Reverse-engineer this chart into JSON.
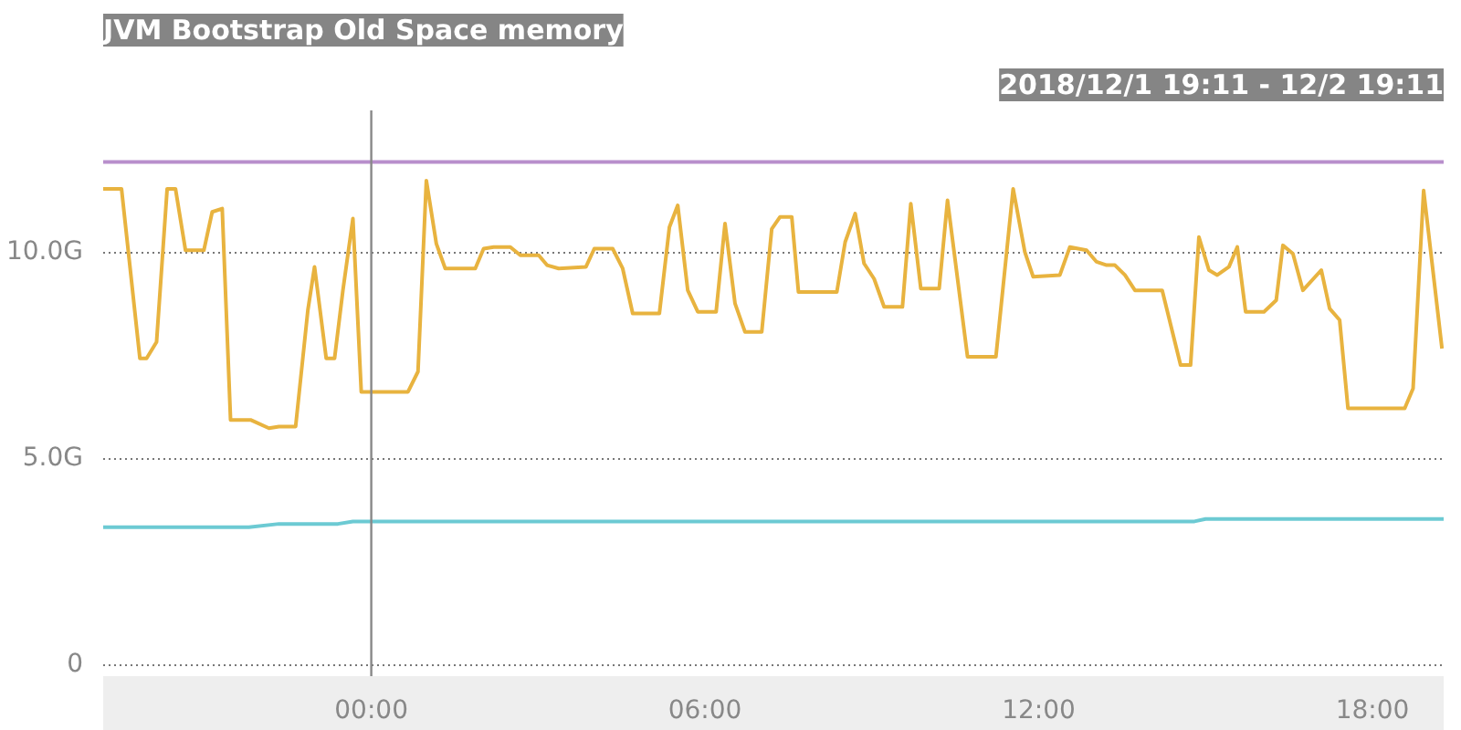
{
  "chart_data": {
    "type": "line",
    "title": "JVM Bootstrap Old Space memory",
    "subtitle": "2018/12/1 19:11 - 12/2 19:11",
    "xlim": [
      -4.82,
      19.28
    ],
    "xticks": [
      {
        "value": 0,
        "label": "00:00"
      },
      {
        "value": 6,
        "label": "06:00"
      },
      {
        "value": 12,
        "label": "12:00"
      },
      {
        "value": 18,
        "label": "18:00"
      }
    ],
    "ylim": [
      -0.28,
      13.43
    ],
    "yticks": [
      {
        "value": 0,
        "label": "0"
      },
      {
        "value": 5,
        "label": "5.0G"
      },
      {
        "value": 10,
        "label": "10.0G"
      }
    ],
    "grid": "y",
    "marker": "none",
    "line_style": "solid",
    "ref_lines": [
      {
        "axis": "x",
        "value": 0,
        "label": null,
        "color": "#888888"
      }
    ],
    "series": [
      {
        "color": "#b88fcc",
        "x": [
          -4.82,
          19.28
        ],
        "values": [
          12.18,
          12.18
        ]
      },
      {
        "color": "#6ccad3",
        "x": [
          -4.82,
          -2.2,
          -1.66,
          -0.6,
          -0.33,
          14.8,
          15.0,
          19.28
        ],
        "values": [
          3.33,
          3.33,
          3.41,
          3.41,
          3.47,
          3.47,
          3.53,
          3.53
        ]
      },
      {
        "color": "#e8b33f",
        "x": [
          -4.82,
          -4.49,
          -4.16,
          -4.04,
          -3.86,
          -3.67,
          -3.52,
          -3.34,
          -3.01,
          -2.86,
          -2.68,
          -2.53,
          -2.17,
          -1.84,
          -1.66,
          -1.36,
          -1.14,
          -1.02,
          -0.81,
          -0.66,
          -0.51,
          -0.33,
          -0.18,
          0.66,
          0.84,
          0.99,
          1.17,
          1.33,
          1.87,
          2.02,
          2.2,
          2.5,
          2.68,
          3.01,
          3.16,
          3.37,
          3.86,
          4.01,
          4.34,
          4.52,
          4.7,
          5.18,
          5.36,
          5.51,
          5.69,
          5.87,
          6.2,
          6.36,
          6.54,
          6.72,
          7.02,
          7.2,
          7.35,
          7.56,
          7.68,
          8.37,
          8.52,
          8.7,
          8.86,
          9.04,
          9.22,
          9.55,
          9.7,
          9.88,
          10.21,
          10.36,
          10.72,
          11.23,
          11.54,
          11.75,
          11.9,
          12.38,
          12.56,
          12.86,
          13.04,
          13.22,
          13.37,
          13.55,
          13.73,
          14.22,
          14.55,
          14.73,
          14.88,
          15.06,
          15.21,
          15.42,
          15.57,
          15.72,
          16.05,
          16.27,
          16.39,
          16.57,
          16.75,
          17.08,
          17.23,
          17.41,
          17.56,
          18.58,
          18.73,
          18.92,
          19.25
        ],
        "values": [
          11.53,
          11.53,
          7.42,
          7.42,
          7.82,
          11.53,
          11.53,
          10.04,
          10.04,
          10.97,
          11.05,
          5.93,
          5.93,
          5.73,
          5.77,
          5.77,
          8.59,
          9.64,
          7.42,
          7.42,
          9.07,
          10.81,
          6.61,
          6.61,
          7.1,
          11.73,
          10.2,
          9.6,
          9.6,
          10.08,
          10.12,
          10.12,
          9.92,
          9.92,
          9.68,
          9.6,
          9.64,
          10.08,
          10.08,
          9.6,
          8.51,
          8.51,
          10.6,
          11.13,
          9.07,
          8.55,
          8.55,
          10.69,
          8.75,
          8.06,
          8.06,
          10.56,
          10.85,
          10.85,
          9.03,
          9.03,
          10.24,
          10.93,
          9.72,
          9.35,
          8.67,
          8.67,
          11.17,
          9.11,
          9.11,
          11.25,
          7.46,
          7.46,
          11.53,
          10.0,
          9.4,
          9.44,
          10.12,
          10.04,
          9.76,
          9.68,
          9.68,
          9.44,
          9.07,
          9.07,
          7.26,
          7.26,
          10.36,
          9.56,
          9.44,
          9.64,
          10.12,
          8.55,
          8.55,
          8.83,
          10.16,
          9.96,
          9.07,
          9.56,
          8.63,
          8.35,
          6.21,
          6.21,
          6.69,
          11.49,
          7.66
        ]
      }
    ]
  }
}
